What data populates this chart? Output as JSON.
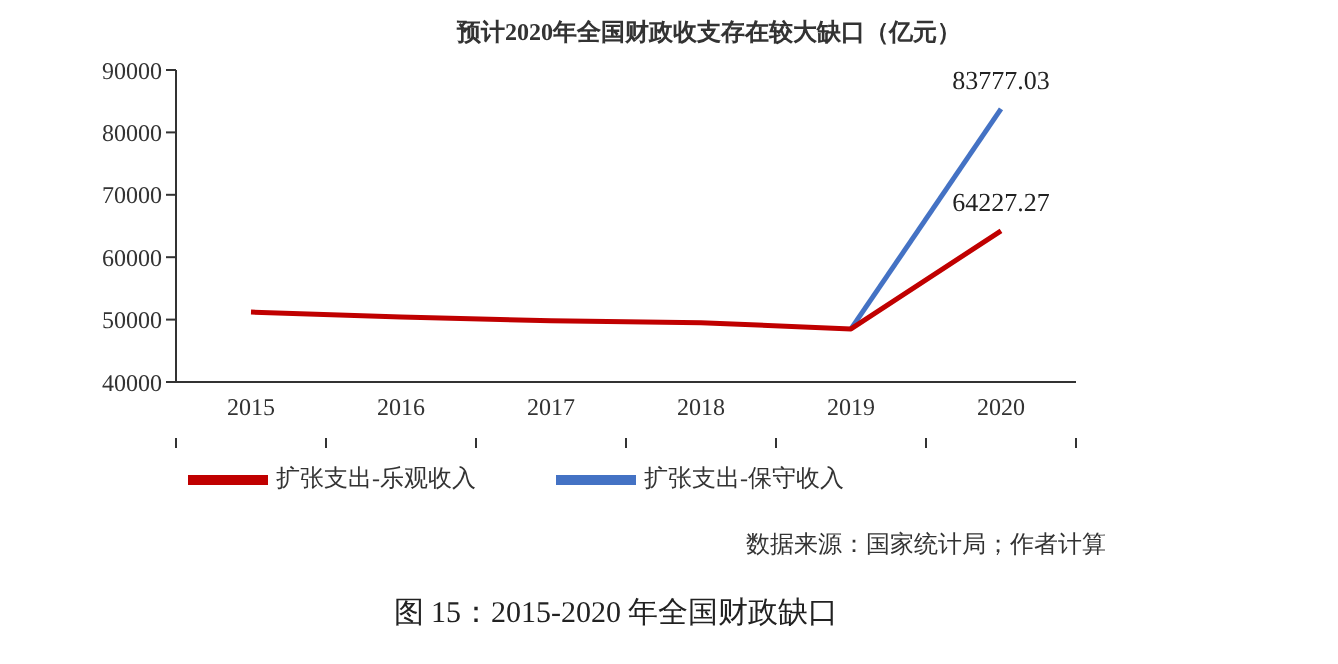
{
  "chart_data": {
    "type": "line",
    "title": "预计2020年全国财政收支存在较大缺口（亿元）",
    "categories": [
      "2015",
      "2016",
      "2017",
      "2018",
      "2019",
      "2020"
    ],
    "series": [
      {
        "name": "扩张支出-保守收入",
        "color": "#4472c4",
        "values": [
          null,
          null,
          null,
          null,
          48500,
          83777.03
        ],
        "value_labels": [
          null,
          null,
          null,
          null,
          null,
          "83777.03"
        ]
      },
      {
        "name": "扩张支出-乐观收入",
        "color": "#c00000",
        "values": [
          51200,
          50400,
          49800,
          49500,
          48500,
          64227.27
        ],
        "value_labels": [
          null,
          null,
          null,
          null,
          null,
          "64227.27"
        ]
      }
    ],
    "ylim": [
      40000,
      90000
    ],
    "yticks": [
      40000,
      50000,
      60000,
      70000,
      80000,
      90000
    ],
    "grid": false,
    "legend": "bottom",
    "marker": "none",
    "line_style": "solid",
    "annotations": [
      "数据来源：国家统计局；作者计算",
      "图 15：2015-2020 年全国财政缺口"
    ]
  }
}
